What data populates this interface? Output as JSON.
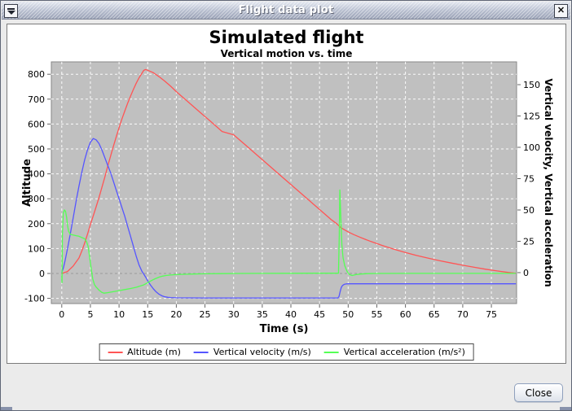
{
  "window": {
    "title": "Flight data plot",
    "menu_icon": "window-menu-icon",
    "close_icon": "window-close-icon",
    "close_button_label": "Close"
  },
  "chart_data": {
    "type": "line",
    "title": "Simulated flight",
    "subtitle": "Vertical motion vs. time",
    "plot_bg": "#c0c0c0",
    "grid_color": "#ffffff",
    "zero_line_color": "#999999",
    "legend_position": "bottom",
    "x_axis": {
      "label": "Time (s)",
      "range": [
        -1.82,
        79.4
      ],
      "ticks": [
        0,
        5,
        10,
        15,
        20,
        25,
        30,
        35,
        40,
        45,
        50,
        55,
        60,
        65,
        70,
        75
      ]
    },
    "left_axis": {
      "label": "Altitude",
      "range": [
        -120.9,
        849.7
      ],
      "ticks": [
        -100,
        0,
        100,
        200,
        300,
        400,
        500,
        600,
        700,
        800
      ]
    },
    "right_axis": {
      "label": "Vertical velocity, Vertical acceleration",
      "range": [
        -24.7,
        168.2
      ],
      "ticks": [
        0,
        25,
        50,
        75,
        100,
        125,
        150
      ]
    },
    "series": [
      {
        "name": "Altitude (m)",
        "color": "#ff5555",
        "axis": "left",
        "points": [
          [
            0,
            0
          ],
          [
            1,
            8
          ],
          [
            2,
            30
          ],
          [
            3,
            62
          ],
          [
            3.5,
            90
          ],
          [
            4,
            122
          ],
          [
            4.5,
            158
          ],
          [
            5,
            196
          ],
          [
            5.5,
            232
          ],
          [
            6,
            268
          ],
          [
            6.5,
            305
          ],
          [
            7,
            345
          ],
          [
            7.5,
            385
          ],
          [
            8,
            428
          ],
          [
            8.5,
            470
          ],
          [
            9,
            510
          ],
          [
            9.5,
            548
          ],
          [
            10,
            585
          ],
          [
            10.5,
            620
          ],
          [
            11,
            652
          ],
          [
            11.5,
            683
          ],
          [
            12,
            712
          ],
          [
            12.5,
            739
          ],
          [
            13,
            764
          ],
          [
            13.5,
            786
          ],
          [
            14,
            804
          ],
          [
            14.3,
            815
          ],
          [
            14.6,
            819
          ],
          [
            15,
            816
          ],
          [
            16,
            806
          ],
          [
            17,
            790
          ],
          [
            18,
            772
          ],
          [
            19,
            752
          ],
          [
            20,
            730
          ],
          [
            21,
            710
          ],
          [
            22,
            690
          ],
          [
            24,
            650
          ],
          [
            26,
            610
          ],
          [
            28,
            570
          ],
          [
            30,
            557
          ],
          [
            32,
            517
          ],
          [
            34,
            477
          ],
          [
            36,
            437
          ],
          [
            38,
            397
          ],
          [
            40,
            357
          ],
          [
            42,
            317
          ],
          [
            44,
            277
          ],
          [
            46,
            237
          ],
          [
            47,
            217
          ],
          [
            48,
            200
          ],
          [
            48.6,
            186
          ],
          [
            49,
            180
          ],
          [
            50,
            167
          ],
          [
            51,
            156
          ],
          [
            52,
            146
          ],
          [
            53,
            137
          ],
          [
            54,
            128
          ],
          [
            55,
            120
          ],
          [
            56,
            112
          ],
          [
            58,
            97
          ],
          [
            60,
            84
          ],
          [
            62,
            72
          ],
          [
            64,
            61
          ],
          [
            66,
            51
          ],
          [
            68,
            42
          ],
          [
            70,
            33
          ],
          [
            72,
            25
          ],
          [
            74,
            17
          ],
          [
            76,
            10
          ],
          [
            78,
            4
          ],
          [
            79.2,
            1
          ]
        ]
      },
      {
        "name": "Vertical velocity (m/s)",
        "color": "#5555ff",
        "axis": "right",
        "points": [
          [
            0,
            0
          ],
          [
            0.3,
            4
          ],
          [
            0.6,
            10
          ],
          [
            1,
            19
          ],
          [
            1.5,
            31
          ],
          [
            2,
            44
          ],
          [
            2.5,
            57
          ],
          [
            3,
            69
          ],
          [
            3.5,
            80
          ],
          [
            4,
            90
          ],
          [
            4.5,
            98
          ],
          [
            5,
            104
          ],
          [
            5.5,
            107
          ],
          [
            6,
            106
          ],
          [
            6.5,
            103
          ],
          [
            7,
            98
          ],
          [
            7.5,
            92
          ],
          [
            8,
            86
          ],
          [
            8.5,
            80
          ],
          [
            9,
            73
          ],
          [
            9.5,
            66
          ],
          [
            10,
            59
          ],
          [
            10.5,
            52
          ],
          [
            11,
            45
          ],
          [
            11.5,
            37
          ],
          [
            12,
            29
          ],
          [
            12.5,
            21
          ],
          [
            13,
            13
          ],
          [
            13.5,
            6
          ],
          [
            14,
            1
          ],
          [
            14.3,
            -1
          ],
          [
            14.7,
            -4
          ],
          [
            15,
            -6.5
          ],
          [
            15.5,
            -10
          ],
          [
            16,
            -13
          ],
          [
            16.5,
            -15.5
          ],
          [
            17,
            -17.3
          ],
          [
            17.5,
            -18.5
          ],
          [
            18,
            -19.3
          ],
          [
            18.5,
            -19.7
          ],
          [
            19,
            -19.9
          ],
          [
            20,
            -20.1
          ],
          [
            25,
            -20.2
          ],
          [
            30,
            -20.2
          ],
          [
            35,
            -20.2
          ],
          [
            40,
            -20.2
          ],
          [
            45,
            -20.2
          ],
          [
            48.2,
            -20.2
          ],
          [
            48.4,
            -19
          ],
          [
            48.6,
            -15
          ],
          [
            48.8,
            -11.8
          ],
          [
            49,
            -10.3
          ],
          [
            49.3,
            -9.4
          ],
          [
            49.7,
            -9
          ],
          [
            50,
            -8.9
          ],
          [
            55,
            -8.9
          ],
          [
            60,
            -8.9
          ],
          [
            65,
            -8.9
          ],
          [
            70,
            -8.9
          ],
          [
            75,
            -8.9
          ],
          [
            79.2,
            -8.9
          ]
        ]
      },
      {
        "name": "Vertical acceleration (m/s²)",
        "color": "#55ff55",
        "axis": "right",
        "points": [
          [
            0,
            -3
          ],
          [
            0.05,
            -8
          ],
          [
            0.12,
            30
          ],
          [
            0.25,
            47
          ],
          [
            0.45,
            50
          ],
          [
            0.65,
            49
          ],
          [
            0.85,
            44
          ],
          [
            1,
            38
          ],
          [
            1.2,
            33
          ],
          [
            1.5,
            30.5
          ],
          [
            2,
            30
          ],
          [
            2.5,
            29.5
          ],
          [
            3,
            29
          ],
          [
            3.5,
            28
          ],
          [
            4,
            27
          ],
          [
            4.3,
            25
          ],
          [
            4.6,
            21
          ],
          [
            4.8,
            15
          ],
          [
            5,
            8
          ],
          [
            5.2,
            1
          ],
          [
            5.4,
            -5
          ],
          [
            5.7,
            -9.5
          ],
          [
            6,
            -11.5
          ],
          [
            6.5,
            -14
          ],
          [
            7,
            -15.8
          ],
          [
            7.4,
            -16.4
          ],
          [
            8,
            -16
          ],
          [
            9,
            -15.2
          ],
          [
            10,
            -14.4
          ],
          [
            11,
            -13.5
          ],
          [
            12,
            -12.7
          ],
          [
            13,
            -11.7
          ],
          [
            13.6,
            -10.8
          ],
          [
            14.3,
            -9.8
          ],
          [
            14.8,
            -8.6
          ],
          [
            15.3,
            -7.2
          ],
          [
            15.8,
            -6
          ],
          [
            16.3,
            -4.9
          ],
          [
            17,
            -3.6
          ],
          [
            17.6,
            -2.8
          ],
          [
            18.2,
            -2.3
          ],
          [
            19,
            -1.9
          ],
          [
            20,
            -1.6
          ],
          [
            21.5,
            -1.3
          ],
          [
            23,
            -1.1
          ],
          [
            25,
            -0.95
          ],
          [
            28,
            -0.8
          ],
          [
            31,
            -0.7
          ],
          [
            35,
            -0.6
          ],
          [
            40,
            -0.55
          ],
          [
            44,
            -0.5
          ],
          [
            48.3,
            -0.5
          ],
          [
            48.45,
            30
          ],
          [
            48.55,
            66
          ],
          [
            48.7,
            45
          ],
          [
            48.9,
            22
          ],
          [
            49.1,
            12
          ],
          [
            49.4,
            5.5
          ],
          [
            49.8,
            1
          ],
          [
            50.2,
            -1.5
          ],
          [
            50.7,
            -2.3
          ],
          [
            51.4,
            -1.6
          ],
          [
            52.2,
            -1.1
          ],
          [
            53.5,
            -0.8
          ],
          [
            55,
            -0.7
          ],
          [
            60,
            -0.6
          ],
          [
            65,
            -0.6
          ],
          [
            70,
            -0.6
          ],
          [
            75,
            -0.6
          ],
          [
            79.2,
            -0.6
          ]
        ]
      }
    ]
  }
}
